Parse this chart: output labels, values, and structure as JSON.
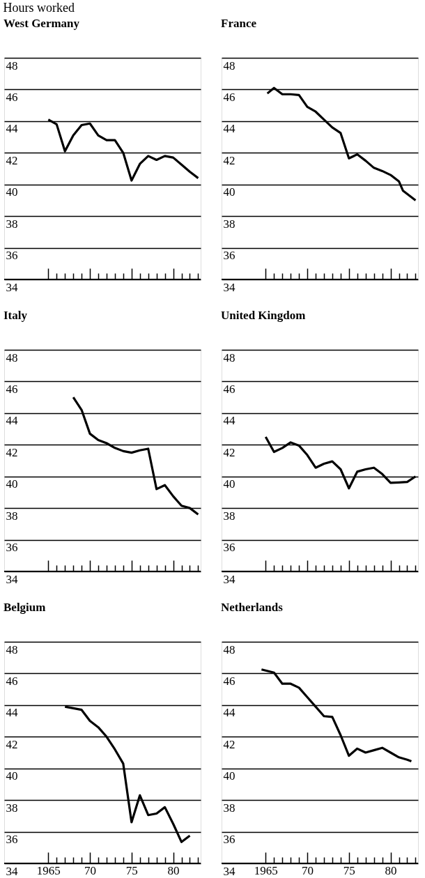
{
  "chart_data": [
    {
      "type": "line",
      "ylabel": "Hours worked",
      "title": "West Germany",
      "tick_labels": "y",
      "grid": "y",
      "xlim": [
        1959.7,
        1983.3
      ],
      "ylim": [
        34,
        48
      ],
      "yticks": [
        34,
        36,
        38,
        40,
        42,
        44,
        46,
        48
      ],
      "xticks": [
        {
          "value": 1965,
          "label": null
        },
        {
          "value": 1966,
          "label": null
        },
        {
          "value": 1967,
          "label": null
        },
        {
          "value": 1968,
          "label": null
        },
        {
          "value": 1969,
          "label": null
        },
        {
          "value": 1970,
          "label": null
        },
        {
          "value": 1971,
          "label": null
        },
        {
          "value": 1972,
          "label": null
        },
        {
          "value": 1973,
          "label": null
        },
        {
          "value": 1974,
          "label": null
        },
        {
          "value": 1975,
          "label": null
        },
        {
          "value": 1976,
          "label": null
        },
        {
          "value": 1977,
          "label": null
        },
        {
          "value": 1978,
          "label": null
        },
        {
          "value": 1979,
          "label": null
        },
        {
          "value": 1980,
          "label": null
        },
        {
          "value": 1981,
          "label": null
        },
        {
          "value": 1982,
          "label": null
        },
        {
          "value": 1983,
          "label": null
        }
      ],
      "x": [
        1965,
        1966,
        1967,
        1968,
        1969,
        1970,
        1971,
        1972,
        1973,
        1974,
        1975,
        1976,
        1977,
        1978,
        1979,
        1980,
        1981,
        1982,
        1983
      ],
      "series": [
        {
          "color": "#000000",
          "values": [
            44.1,
            43.8,
            42.1,
            43.1,
            43.75,
            43.85,
            43.1,
            42.8,
            42.8,
            42.0,
            40.25,
            41.3,
            41.8,
            41.55,
            41.8,
            41.7,
            41.25,
            40.8,
            40.4
          ]
        }
      ]
    },
    {
      "type": "line",
      "title": "France",
      "tick_labels": "y",
      "grid": "y",
      "xlim": [
        1959.7,
        1983.3
      ],
      "ylim": [
        34,
        48
      ],
      "yticks": [
        34,
        36,
        38,
        40,
        42,
        44,
        46,
        48
      ],
      "xticks": [
        {
          "value": 1965,
          "label": null
        },
        {
          "value": 1966,
          "label": null
        },
        {
          "value": 1967,
          "label": null
        },
        {
          "value": 1968,
          "label": null
        },
        {
          "value": 1969,
          "label": null
        },
        {
          "value": 1970,
          "label": null
        },
        {
          "value": 1971,
          "label": null
        },
        {
          "value": 1972,
          "label": null
        },
        {
          "value": 1973,
          "label": null
        },
        {
          "value": 1974,
          "label": null
        },
        {
          "value": 1975,
          "label": null
        },
        {
          "value": 1976,
          "label": null
        },
        {
          "value": 1977,
          "label": null
        },
        {
          "value": 1978,
          "label": null
        },
        {
          "value": 1979,
          "label": null
        },
        {
          "value": 1980,
          "label": null
        },
        {
          "value": 1981,
          "label": null
        },
        {
          "value": 1982,
          "label": null
        },
        {
          "value": 1983,
          "label": null
        }
      ],
      "x": [
        1965.2,
        1966,
        1967,
        1968,
        1969,
        1970,
        1971,
        1972,
        1973,
        1974,
        1975,
        1976,
        1977,
        1978,
        1979,
        1980,
        1981,
        1981.5,
        1983
      ],
      "series": [
        {
          "color": "#000000",
          "values": [
            45.75,
            46.1,
            45.7,
            45.7,
            45.65,
            44.9,
            44.6,
            44.1,
            43.6,
            43.25,
            41.65,
            41.9,
            41.5,
            41.05,
            40.85,
            40.6,
            40.2,
            39.6,
            39.0
          ]
        }
      ]
    },
    {
      "type": "line",
      "title": "Italy",
      "tick_labels": "y",
      "grid": "y",
      "xlim": [
        1959.7,
        1983.3
      ],
      "ylim": [
        34,
        48
      ],
      "yticks": [
        34,
        36,
        38,
        40,
        42,
        44,
        46,
        48
      ],
      "xticks": [
        {
          "value": 1965,
          "label": null
        },
        {
          "value": 1966,
          "label": null
        },
        {
          "value": 1967,
          "label": null
        },
        {
          "value": 1968,
          "label": null
        },
        {
          "value": 1969,
          "label": null
        },
        {
          "value": 1970,
          "label": null
        },
        {
          "value": 1971,
          "label": null
        },
        {
          "value": 1972,
          "label": null
        },
        {
          "value": 1973,
          "label": null
        },
        {
          "value": 1974,
          "label": null
        },
        {
          "value": 1975,
          "label": null
        },
        {
          "value": 1976,
          "label": null
        },
        {
          "value": 1977,
          "label": null
        },
        {
          "value": 1978,
          "label": null
        },
        {
          "value": 1979,
          "label": null
        },
        {
          "value": 1980,
          "label": null
        },
        {
          "value": 1981,
          "label": null
        },
        {
          "value": 1982,
          "label": null
        },
        {
          "value": 1983,
          "label": null
        }
      ],
      "x": [
        1968,
        1969,
        1970,
        1971,
        1972,
        1973,
        1974,
        1975,
        1976,
        1977,
        1978,
        1979,
        1980,
        1981,
        1982,
        1983
      ],
      "series": [
        {
          "color": "#000000",
          "values": [
            45.0,
            44.2,
            42.7,
            42.3,
            42.1,
            41.8,
            41.6,
            41.5,
            41.65,
            41.75,
            39.2,
            39.45,
            38.75,
            38.15,
            38.0,
            37.6
          ]
        }
      ]
    },
    {
      "type": "line",
      "title": "United Kingdom",
      "tick_labels": "y",
      "grid": "y",
      "xlim": [
        1959.7,
        1983.3
      ],
      "ylim": [
        34,
        48
      ],
      "yticks": [
        34,
        36,
        38,
        40,
        42,
        44,
        46,
        48
      ],
      "xticks": [
        {
          "value": 1965,
          "label": null
        },
        {
          "value": 1966,
          "label": null
        },
        {
          "value": 1967,
          "label": null
        },
        {
          "value": 1968,
          "label": null
        },
        {
          "value": 1969,
          "label": null
        },
        {
          "value": 1970,
          "label": null
        },
        {
          "value": 1971,
          "label": null
        },
        {
          "value": 1972,
          "label": null
        },
        {
          "value": 1973,
          "label": null
        },
        {
          "value": 1974,
          "label": null
        },
        {
          "value": 1975,
          "label": null
        },
        {
          "value": 1976,
          "label": null
        },
        {
          "value": 1977,
          "label": null
        },
        {
          "value": 1978,
          "label": null
        },
        {
          "value": 1979,
          "label": null
        },
        {
          "value": 1980,
          "label": null
        },
        {
          "value": 1981,
          "label": null
        },
        {
          "value": 1982,
          "label": null
        },
        {
          "value": 1983,
          "label": null
        }
      ],
      "x": [
        1965,
        1966,
        1967,
        1968,
        1969,
        1970,
        1971,
        1972,
        1973,
        1974,
        1975,
        1976,
        1977,
        1978,
        1979,
        1980,
        1981,
        1982,
        1983
      ],
      "series": [
        {
          "color": "#000000",
          "values": [
            42.5,
            41.55,
            41.8,
            42.15,
            41.95,
            41.35,
            40.55,
            40.8,
            40.95,
            40.45,
            39.25,
            40.3,
            40.45,
            40.55,
            40.15,
            39.6,
            39.62,
            39.65,
            40.0
          ]
        }
      ]
    },
    {
      "type": "line",
      "title": "Belgium",
      "grid": "y",
      "xlim": [
        1959.7,
        1983.3
      ],
      "ylim": [
        34,
        48
      ],
      "yticks": [
        34,
        36,
        38,
        40,
        42,
        44,
        46,
        48
      ],
      "xticks": [
        {
          "value": 1965,
          "label": "1965"
        },
        {
          "value": 1966,
          "label": null
        },
        {
          "value": 1967,
          "label": null
        },
        {
          "value": 1968,
          "label": null
        },
        {
          "value": 1969,
          "label": null
        },
        {
          "value": 1970,
          "label": "70"
        },
        {
          "value": 1971,
          "label": null
        },
        {
          "value": 1972,
          "label": null
        },
        {
          "value": 1973,
          "label": null
        },
        {
          "value": 1974,
          "label": null
        },
        {
          "value": 1975,
          "label": "75"
        },
        {
          "value": 1976,
          "label": null
        },
        {
          "value": 1977,
          "label": null
        },
        {
          "value": 1978,
          "label": null
        },
        {
          "value": 1979,
          "label": null
        },
        {
          "value": 1980,
          "label": "80"
        },
        {
          "value": 1981,
          "label": null
        },
        {
          "value": 1982,
          "label": null
        },
        {
          "value": 1983,
          "label": null
        }
      ],
      "x": [
        1967,
        1968,
        1969,
        1970,
        1971,
        1972,
        1973,
        1974,
        1975,
        1976,
        1977,
        1978,
        1979,
        1980,
        1981,
        1982
      ],
      "series": [
        {
          "color": "#000000",
          "values": [
            43.9,
            43.8,
            43.7,
            43.0,
            42.6,
            42.0,
            41.2,
            40.3,
            36.6,
            38.3,
            37.05,
            37.15,
            37.55,
            36.5,
            35.35,
            35.75
          ]
        }
      ]
    },
    {
      "type": "line",
      "title": "Netherlands",
      "grid": "y",
      "xlim": [
        1959.7,
        1983.3
      ],
      "ylim": [
        34,
        48
      ],
      "yticks": [
        34,
        36,
        38,
        40,
        42,
        44,
        46,
        48
      ],
      "xticks": [
        {
          "value": 1965,
          "label": "1965"
        },
        {
          "value": 1966,
          "label": null
        },
        {
          "value": 1967,
          "label": null
        },
        {
          "value": 1968,
          "label": null
        },
        {
          "value": 1969,
          "label": null
        },
        {
          "value": 1970,
          "label": "70"
        },
        {
          "value": 1971,
          "label": null
        },
        {
          "value": 1972,
          "label": null
        },
        {
          "value": 1973,
          "label": null
        },
        {
          "value": 1974,
          "label": null
        },
        {
          "value": 1975,
          "label": "75"
        },
        {
          "value": 1976,
          "label": null
        },
        {
          "value": 1977,
          "label": null
        },
        {
          "value": 1978,
          "label": null
        },
        {
          "value": 1979,
          "label": null
        },
        {
          "value": 1980,
          "label": "80"
        },
        {
          "value": 1981,
          "label": null
        },
        {
          "value": 1982,
          "label": null
        },
        {
          "value": 1983,
          "label": null
        }
      ],
      "x": [
        1964.5,
        1966,
        1967,
        1968,
        1969,
        1970,
        1971,
        1972,
        1973,
        1974,
        1975,
        1976,
        1977,
        1978,
        1979,
        1980,
        1981,
        1982,
        1982.5
      ],
      "series": [
        {
          "color": "#000000",
          "values": [
            46.25,
            46.05,
            45.35,
            45.35,
            45.1,
            44.5,
            43.9,
            43.3,
            43.25,
            42.1,
            40.8,
            41.25,
            41.0,
            41.15,
            41.3,
            41.0,
            40.7,
            40.55,
            40.45
          ]
        }
      ]
    }
  ]
}
